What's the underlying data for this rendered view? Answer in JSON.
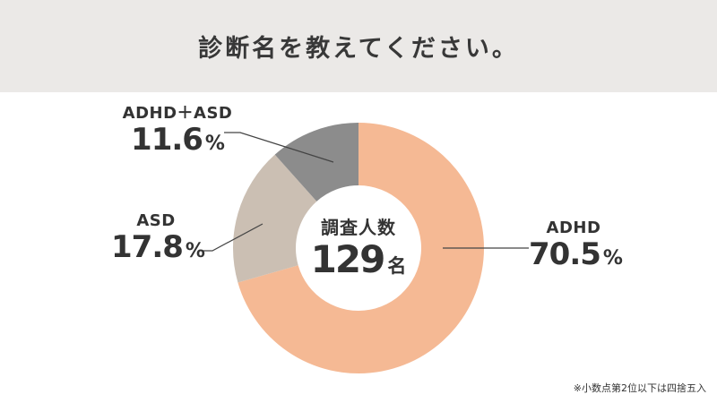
{
  "header": {
    "title": "診断名を教えてください。"
  },
  "center": {
    "caption": "調査人数",
    "count": "129",
    "unit": "名"
  },
  "footnote": "※小数点第2位以下は四捨五入",
  "labels": [
    {
      "name": "ADHD",
      "value": "70.5",
      "unit": "%"
    },
    {
      "name": "ASD",
      "value": "17.8",
      "unit": "%"
    },
    {
      "name": "ADHD＋ASD",
      "value": "11.6",
      "unit": "%"
    }
  ],
  "colors": {
    "ADHD": "#f5b994",
    "ASD": "#cbbfb3",
    "ADHD＋ASD": "#8c8c8c",
    "header_bg": "#ebe9e7"
  },
  "chart_data": {
    "type": "pie",
    "variant": "donut",
    "title": "診断名を教えてください。",
    "categories": [
      "ADHD",
      "ASD",
      "ADHD＋ASD"
    ],
    "values": [
      70.5,
      17.8,
      11.6
    ],
    "unit": "%",
    "center_label": "調査人数 129名",
    "total_respondents": 129,
    "start_angle": "12 o'clock, clockwise",
    "legend": "none (callout labels)",
    "note": "※小数点第2位以下は四捨五入"
  }
}
